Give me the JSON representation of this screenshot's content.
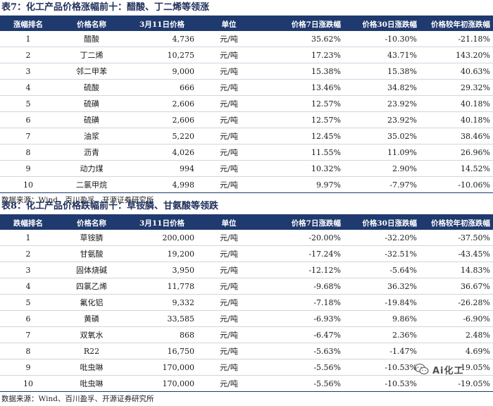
{
  "tables": [
    {
      "title": "表7：化工产品价格涨幅前十：醋酸、丁二烯等领涨",
      "headers": [
        "涨幅排名",
        "价格名称",
        "3月11日价格",
        "单位",
        "价格7日涨跌幅",
        "价格30日涨跌幅",
        "价格较年初涨跌幅"
      ],
      "rows": [
        [
          "1",
          "醋酸",
          "4,736",
          "元/吨",
          "35.62%",
          "-10.30%",
          "-21.18%"
        ],
        [
          "2",
          "丁二烯",
          "10,275",
          "元/吨",
          "17.23%",
          "43.71%",
          "143.20%"
        ],
        [
          "3",
          "邻二甲苯",
          "9,000",
          "元/吨",
          "15.38%",
          "15.38%",
          "40.63%"
        ],
        [
          "4",
          "硫酸",
          "666",
          "元/吨",
          "13.46%",
          "34.82%",
          "29.32%"
        ],
        [
          "5",
          "硫磺",
          "2,606",
          "元/吨",
          "12.57%",
          "23.92%",
          "40.18%"
        ],
        [
          "6",
          "硫磺",
          "2,606",
          "元/吨",
          "12.57%",
          "23.92%",
          "40.18%"
        ],
        [
          "7",
          "油浆",
          "5,220",
          "元/吨",
          "12.45%",
          "35.02%",
          "38.46%"
        ],
        [
          "8",
          "沥青",
          "4,026",
          "元/吨",
          "11.55%",
          "11.09%",
          "26.96%"
        ],
        [
          "9",
          "动力煤",
          "994",
          "元/吨",
          "10.32%",
          "2.90%",
          "14.52%"
        ],
        [
          "10",
          "二氯甲烷",
          "4,998",
          "元/吨",
          "9.97%",
          "-7.97%",
          "-10.06%"
        ]
      ],
      "source": "数据来源：Wind、百川盈孚、开源证券研究所"
    },
    {
      "title": "表8：化工产品价格跌幅前十：草铵膦、甘氨酸等领跌",
      "headers": [
        "跌幅排名",
        "价格名称",
        "3月11日价格",
        "单位",
        "价格7日涨跌幅",
        "价格30日涨跌幅",
        "价格较年初涨跌幅"
      ],
      "rows": [
        [
          "1",
          "草铵膦",
          "200,000",
          "元/吨",
          "-20.00%",
          "-32.20%",
          "-37.50%"
        ],
        [
          "2",
          "甘氨酸",
          "19,200",
          "元/吨",
          "-17.24%",
          "-32.51%",
          "-43.45%"
        ],
        [
          "3",
          "固体烧碱",
          "3,950",
          "元/吨",
          "-12.12%",
          "-5.64%",
          "14.83%"
        ],
        [
          "4",
          "四氯乙烯",
          "11,778",
          "元/吨",
          "-9.68%",
          "36.32%",
          "36.67%"
        ],
        [
          "5",
          "氟化铝",
          "9,332",
          "元/吨",
          "-7.18%",
          "-19.84%",
          "-26.28%"
        ],
        [
          "6",
          "黄磷",
          "33,585",
          "元/吨",
          "-6.93%",
          "9.86%",
          "-6.90%"
        ],
        [
          "7",
          "双氧水",
          "868",
          "元/吨",
          "-6.47%",
          "2.36%",
          "2.48%"
        ],
        [
          "8",
          "R22",
          "16,750",
          "元/吨",
          "-5.63%",
          "-1.47%",
          "4.69%"
        ],
        [
          "9",
          "吡虫啉",
          "170,000",
          "元/吨",
          "-5.56%",
          "-10.53%",
          "-19.05%"
        ],
        [
          "10",
          "吡虫啉",
          "170,000",
          "元/吨",
          "-5.56%",
          "-10.53%",
          "-19.05%"
        ]
      ],
      "source": "数据来源：Wind、百川盈孚、开源证券研究所"
    }
  ],
  "watermark": {
    "text": "Ai化工",
    "icon": "wechat-icon"
  },
  "colors": {
    "header_bg": "#1f3a6e",
    "title_text": "#1f2e5a"
  }
}
